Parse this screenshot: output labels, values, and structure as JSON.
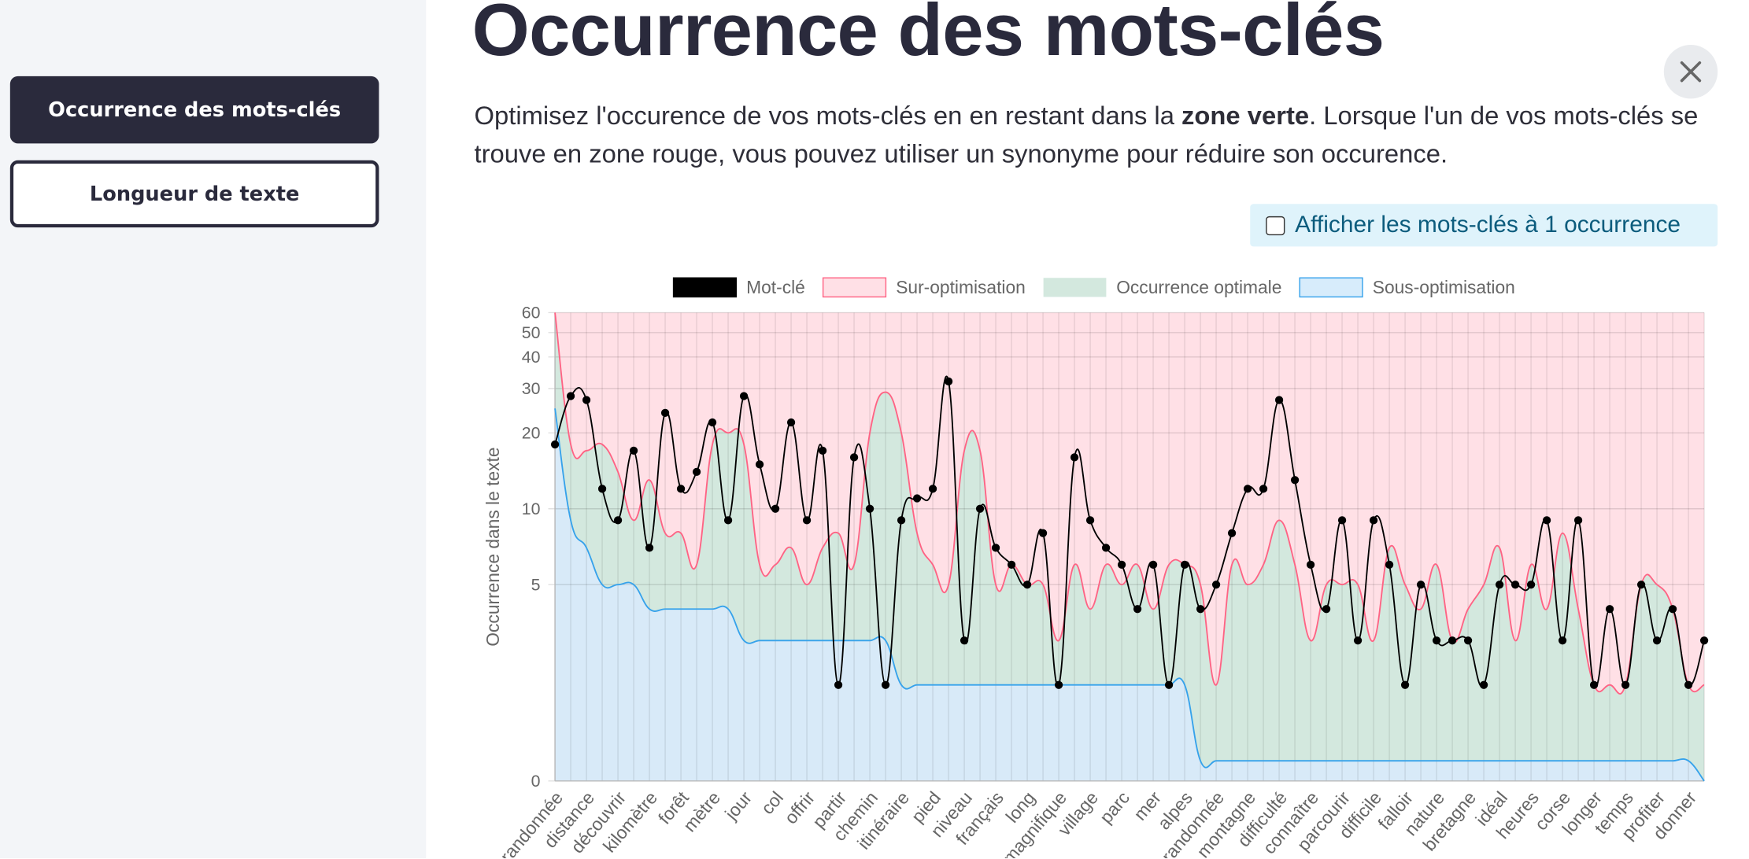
{
  "sidebar": {
    "buttons": [
      "Occurrence des mots-clés",
      "Longueur de texte"
    ]
  },
  "header": {
    "title": "Occurrence des mots-clés",
    "description": [
      "Optimisez l'occurence de vos mots-clés en en restant dans la ",
      "zone verte",
      ". Lorsque l'un de vos mots-clés se trouve en zone rouge, vous pouvez utiliser un synonyme pour réduire son occurence."
    ],
    "checkbox": "Afficher les mots-clés à 1 occurrence"
  },
  "chart_data": {
    "type": "line",
    "y_label": "Occurrence dans le texte",
    "yscale": "log",
    "grid": true,
    "ylim": [
      0,
      60
    ],
    "yticks": [
      0,
      5,
      10,
      20,
      30,
      40,
      50,
      60
    ],
    "categories": [
      "randonnée",
      null,
      "distance",
      null,
      "découvrir",
      null,
      "kilomètre",
      null,
      "forêt",
      null,
      "mètre",
      null,
      "jour",
      null,
      "col",
      null,
      "offrir",
      null,
      "partir",
      null,
      "chemin",
      null,
      "itinéraire",
      null,
      "pied",
      null,
      "niveau",
      null,
      "français",
      null,
      "long",
      null,
      "magnifique",
      null,
      "village",
      null,
      "parc",
      null,
      "mer",
      null,
      "alpes",
      null,
      "randonnée",
      null,
      "montagne",
      null,
      "difficulté",
      null,
      "connaître",
      null,
      "parcourir",
      null,
      "difficile",
      null,
      "falloir",
      null,
      "nature",
      null,
      "bretagne",
      null,
      "idéal",
      null,
      "heures",
      null,
      "corse",
      null,
      "longer",
      null,
      "temps",
      null,
      "profiter",
      null,
      "donner",
      null
    ],
    "series": [
      {
        "name": "Mot-clé",
        "color": "#000000",
        "values": [
          18,
          28,
          27,
          12,
          9,
          17,
          7,
          24,
          12,
          14,
          22,
          9,
          28,
          15,
          10,
          22,
          9,
          17,
          2,
          16,
          10,
          2,
          9,
          11,
          12,
          32,
          3,
          10,
          7,
          6,
          5,
          8,
          2,
          16,
          9,
          7,
          6,
          4,
          6,
          2,
          6,
          4,
          5,
          8,
          12,
          12,
          27,
          13,
          6,
          4,
          9,
          3,
          9,
          6,
          2,
          5,
          3,
          3,
          3,
          2,
          5,
          5,
          5,
          9,
          3,
          9,
          2,
          4,
          2,
          5,
          3,
          4,
          2,
          3
        ]
      },
      {
        "name": "Sur-optimisation",
        "color": "#ff6384",
        "values": [
          60,
          18,
          17,
          18,
          14,
          9,
          13,
          8,
          8,
          6,
          18,
          20,
          18,
          6,
          6,
          7,
          5,
          7,
          8,
          6,
          20,
          29,
          20,
          8,
          6,
          5,
          17,
          17,
          5,
          6,
          5,
          5,
          3,
          6,
          4,
          6,
          5,
          6,
          4,
          6,
          6,
          5,
          2,
          6,
          5,
          6,
          9,
          6,
          3,
          5,
          5,
          5,
          3,
          7,
          5,
          4,
          6,
          3,
          4,
          5,
          7,
          3,
          6,
          4,
          8,
          4,
          2,
          2,
          2,
          5,
          5,
          4,
          2,
          2
        ]
      },
      {
        "name": "Occurrence optimale",
        "color": "#d3e8de"
      },
      {
        "name": "Sous-optimisation",
        "color": "#36a2eb",
        "values": [
          25,
          9,
          7,
          5,
          5,
          5,
          4,
          4,
          4,
          4,
          4,
          4,
          3,
          3,
          3,
          3,
          3,
          3,
          3,
          3,
          3,
          3,
          2,
          2,
          2,
          2,
          2,
          2,
          2,
          2,
          2,
          2,
          2,
          2,
          2,
          2,
          2,
          2,
          2,
          2,
          2,
          1,
          1,
          1,
          1,
          1,
          1,
          1,
          1,
          1,
          1,
          1,
          1,
          1,
          1,
          1,
          1,
          1,
          1,
          1,
          1,
          1,
          1,
          1,
          1,
          1,
          1,
          1,
          1,
          1,
          1,
          1,
          1,
          0
        ]
      }
    ]
  }
}
